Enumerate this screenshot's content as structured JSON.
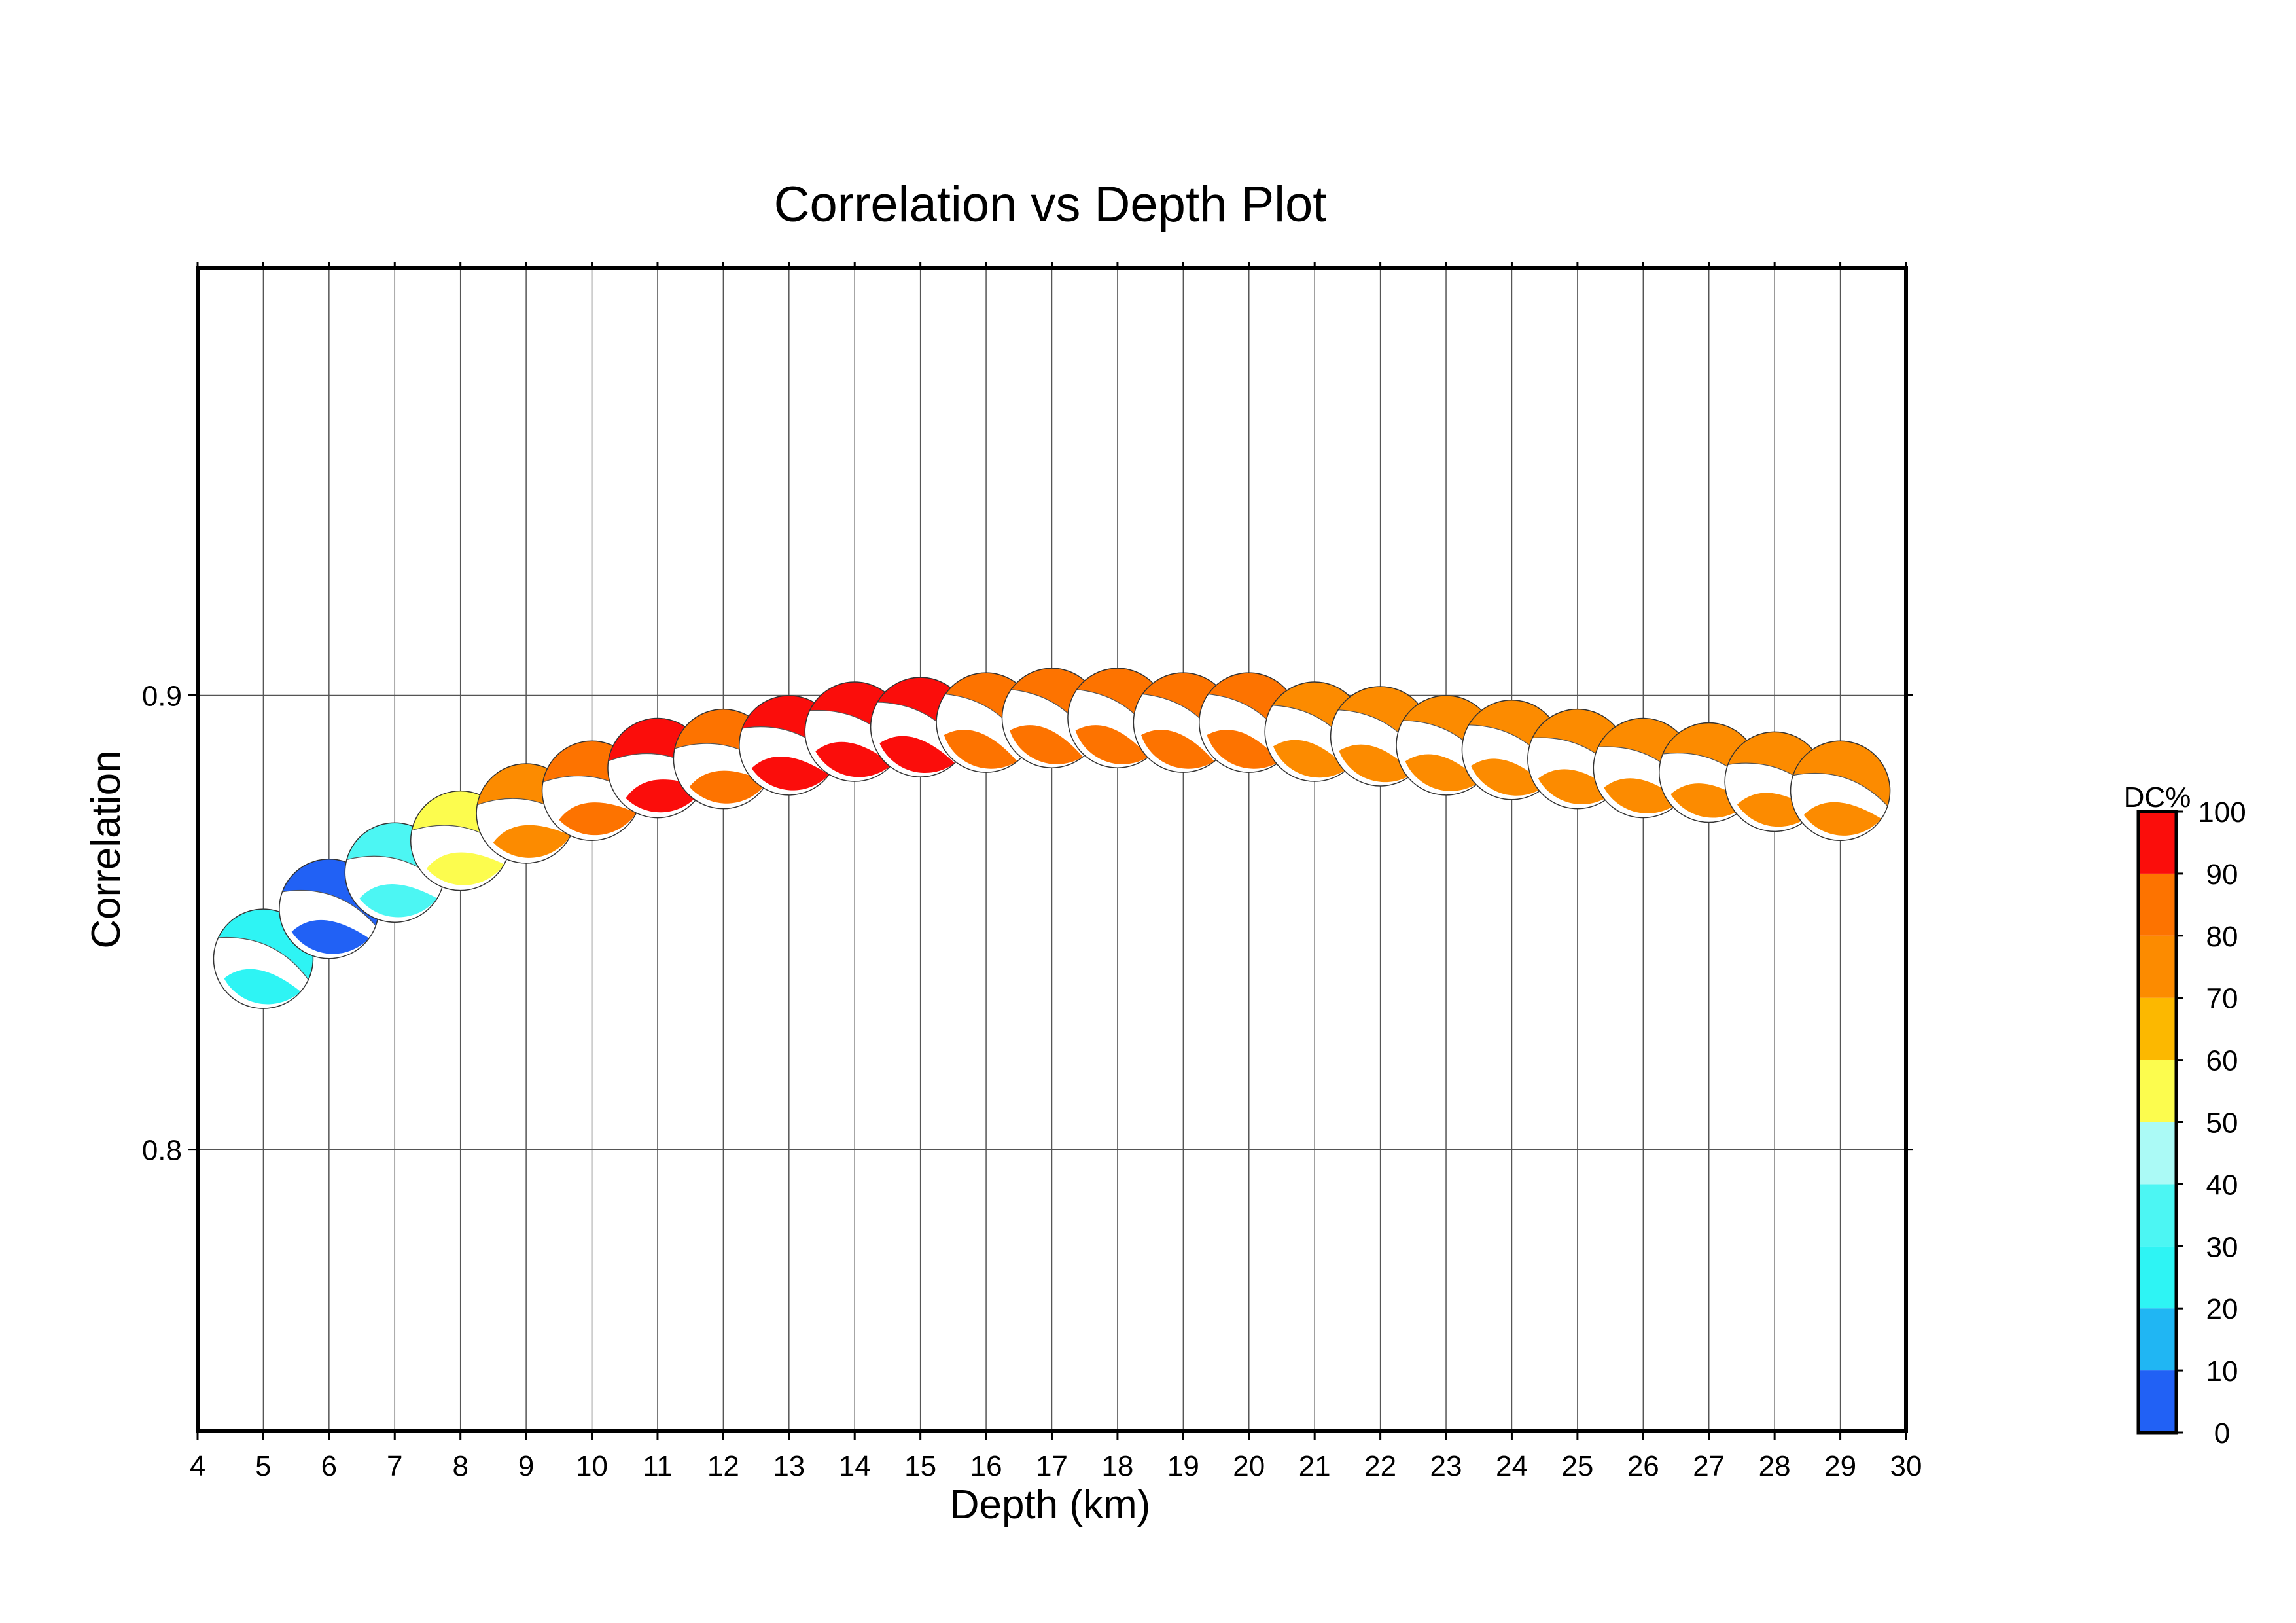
{
  "chart_data": {
    "type": "scatter",
    "title": "Correlation vs Depth Plot",
    "xlabel": "Depth (km)",
    "ylabel": "Correlation",
    "xlim": [
      4,
      30
    ],
    "ylim": [
      0.738,
      0.994
    ],
    "xticks": [
      4,
      5,
      6,
      7,
      8,
      9,
      10,
      11,
      12,
      13,
      14,
      15,
      16,
      17,
      18,
      19,
      20,
      21,
      22,
      23,
      24,
      25,
      26,
      27,
      28,
      29,
      30
    ],
    "yticks": [
      0.8,
      0.9
    ],
    "ytick_labels": [
      "0.8",
      "0.9"
    ],
    "grid": true,
    "points": [
      {
        "x": 5,
        "y": 0.842,
        "dc": 25,
        "color": "#2ef4f4",
        "rot": 205
      },
      {
        "x": 6,
        "y": 0.853,
        "dc": 5,
        "color": "#2161f5",
        "rot": 200
      },
      {
        "x": 7,
        "y": 0.861,
        "dc": 35,
        "color": "#4cf6f3",
        "rot": 195
      },
      {
        "x": 8,
        "y": 0.868,
        "dc": 55,
        "color": "#fcfc4e",
        "rot": 192
      },
      {
        "x": 9,
        "y": 0.874,
        "dc": 75,
        "color": "#fc8b00",
        "rot": 190
      },
      {
        "x": 10,
        "y": 0.879,
        "dc": 85,
        "color": "#fd7300",
        "rot": 190
      },
      {
        "x": 11,
        "y": 0.884,
        "dc": 95,
        "color": "#fb0d0b",
        "rot": 188
      },
      {
        "x": 12,
        "y": 0.886,
        "dc": 85,
        "color": "#fd7300",
        "rot": 192
      },
      {
        "x": 13,
        "y": 0.889,
        "dc": 95,
        "color": "#fb0d0b",
        "rot": 200
      },
      {
        "x": 14,
        "y": 0.892,
        "dc": 95,
        "color": "#fb0d0b",
        "rot": 205
      },
      {
        "x": 15,
        "y": 0.893,
        "dc": 95,
        "color": "#fb0d0b",
        "rot": 210
      },
      {
        "x": 16,
        "y": 0.894,
        "dc": 85,
        "color": "#fd7300",
        "rot": 215
      },
      {
        "x": 17,
        "y": 0.895,
        "dc": 85,
        "color": "#fd7300",
        "rot": 215
      },
      {
        "x": 18,
        "y": 0.895,
        "dc": 85,
        "color": "#fd7300",
        "rot": 215
      },
      {
        "x": 19,
        "y": 0.894,
        "dc": 85,
        "color": "#fd7300",
        "rot": 215
      },
      {
        "x": 20,
        "y": 0.894,
        "dc": 85,
        "color": "#fd7300",
        "rot": 215
      },
      {
        "x": 21,
        "y": 0.892,
        "dc": 75,
        "color": "#fc8b00",
        "rot": 212
      },
      {
        "x": 22,
        "y": 0.891,
        "dc": 75,
        "color": "#fc8b00",
        "rot": 212
      },
      {
        "x": 23,
        "y": 0.889,
        "dc": 75,
        "color": "#fc8b00",
        "rot": 210
      },
      {
        "x": 24,
        "y": 0.888,
        "dc": 75,
        "color": "#fc8b00",
        "rot": 210
      },
      {
        "x": 25,
        "y": 0.886,
        "dc": 75,
        "color": "#fc8b00",
        "rot": 205
      },
      {
        "x": 26,
        "y": 0.884,
        "dc": 75,
        "color": "#fc8b00",
        "rot": 205
      },
      {
        "x": 27,
        "y": 0.883,
        "dc": 75,
        "color": "#fc8b00",
        "rot": 202
      },
      {
        "x": 28,
        "y": 0.881,
        "dc": 75,
        "color": "#fc8b00",
        "rot": 200
      },
      {
        "x": 29,
        "y": 0.879,
        "dc": 75,
        "color": "#fc8b00",
        "rot": 198
      }
    ],
    "colorbar": {
      "label": "DC%",
      "ticks": [
        "0",
        "10",
        "20",
        "30",
        "40",
        "50",
        "60",
        "70",
        "80",
        "90",
        "100"
      ],
      "colors": [
        "#2161f5",
        "#20b6f3",
        "#2ef4f4",
        "#4cf6f3",
        "#abfaf6",
        "#fcfc4e",
        "#fcb800",
        "#fc8b00",
        "#fd7300",
        "#fb0d0b"
      ]
    }
  }
}
